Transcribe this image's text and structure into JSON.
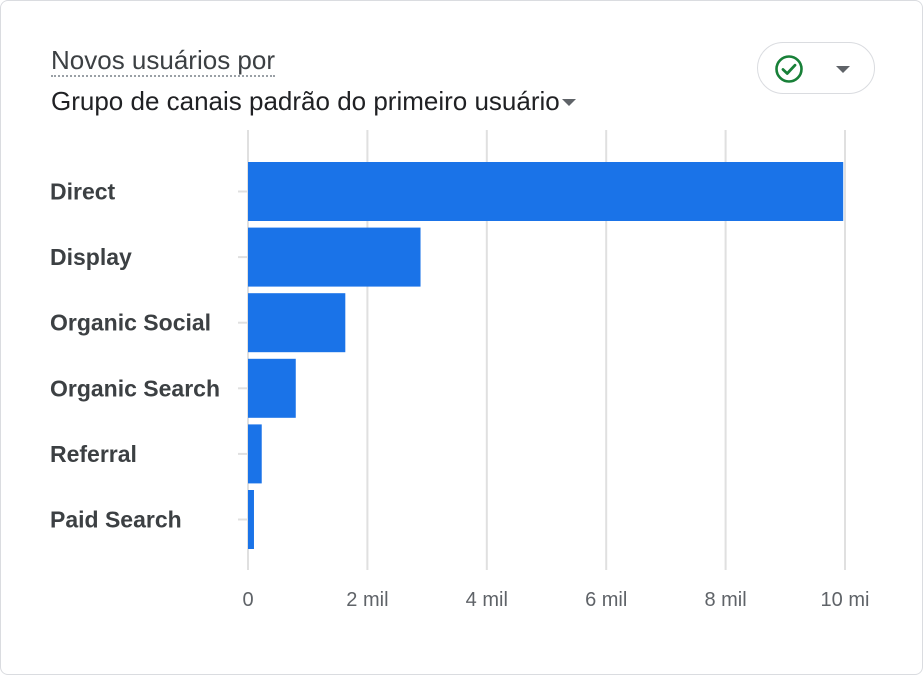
{
  "header": {
    "title_line1": "Novos usuários por",
    "title_line2": "Grupo de canais padrão do primeiro usuário"
  },
  "status_button": {
    "icon": "check-circle-icon",
    "dropdown_icon": "arrow-drop-down-icon",
    "check_color": "#188038"
  },
  "colors": {
    "bar": "#1a73e8",
    "grid": "#e0e0e0"
  },
  "chart_data": {
    "type": "bar",
    "orientation": "horizontal",
    "categories": [
      "Direct",
      "Display",
      "Organic Social",
      "Organic Search",
      "Referral",
      "Paid Search"
    ],
    "values": [
      9970,
      2890,
      1630,
      800,
      230,
      100
    ],
    "xlim": [
      0,
      10000
    ],
    "x_ticks": [
      0,
      2000,
      4000,
      6000,
      8000,
      10000
    ],
    "x_tick_labels": [
      "0",
      "2 mil",
      "4 mil",
      "6 mil",
      "8 mil",
      "10 mi"
    ],
    "grid": true
  }
}
